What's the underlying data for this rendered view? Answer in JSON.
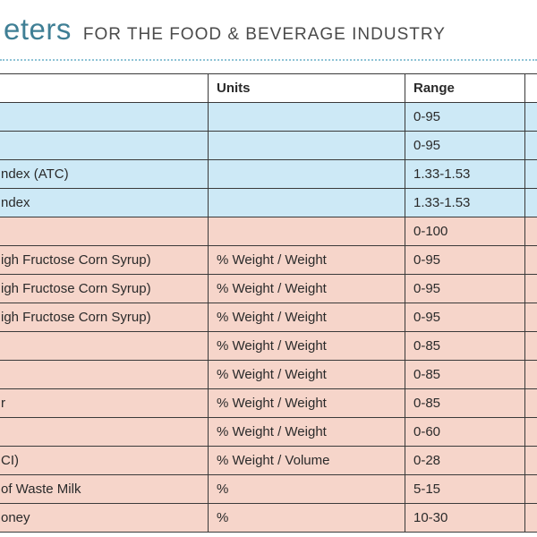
{
  "header": {
    "title_partial": "eters",
    "subtitle": "FOR THE FOOD & BEVERAGE INDUSTRY"
  },
  "table": {
    "columns": [
      "",
      "Units",
      "Range",
      ""
    ],
    "rows": [
      {
        "param": "",
        "units": "",
        "range": "0-95",
        "color": "blue"
      },
      {
        "param": "",
        "units": "",
        "range": "0-95",
        "color": "blue"
      },
      {
        "param": "ndex (ATC)",
        "units": "",
        "range": "1.33-1.53",
        "color": "blue"
      },
      {
        "param": "ndex",
        "units": "",
        "range": "1.33-1.53",
        "color": "blue"
      },
      {
        "param": "",
        "units": "",
        "range": "0-100",
        "color": "pink"
      },
      {
        "param": "igh Fructose Corn Syrup)",
        "units": "% Weight / Weight",
        "range": "0-95",
        "color": "pink"
      },
      {
        "param": "igh Fructose Corn Syrup)",
        "units": "% Weight / Weight",
        "range": "0-95",
        "color": "pink"
      },
      {
        "param": "igh Fructose Corn Syrup)",
        "units": "% Weight / Weight",
        "range": "0-95",
        "color": "pink"
      },
      {
        "param": "",
        "units": "% Weight / Weight",
        "range": "0-85",
        "color": "pink"
      },
      {
        "param": "",
        "units": "% Weight / Weight",
        "range": "0-85",
        "color": "pink"
      },
      {
        "param": "r",
        "units": "% Weight / Weight",
        "range": "0-85",
        "color": "pink"
      },
      {
        "param": "",
        "units": "% Weight / Weight",
        "range": "0-60",
        "color": "pink"
      },
      {
        "param": "CI)",
        "units": "% Weight / Volume",
        "range": "0-28",
        "color": "pink"
      },
      {
        "param": " of Waste Milk",
        "units": "%",
        "range": "5-15",
        "color": "pink"
      },
      {
        "param": "oney",
        "units": "%",
        "range": "10-30",
        "color": "pink"
      }
    ]
  },
  "colors": {
    "title": "#3f7f95",
    "blue_row": "#cde9f6",
    "pink_row": "#f6d5ca",
    "dotted_rule": "#8fc3d6",
    "grid_lines": "#3a3a3a"
  }
}
